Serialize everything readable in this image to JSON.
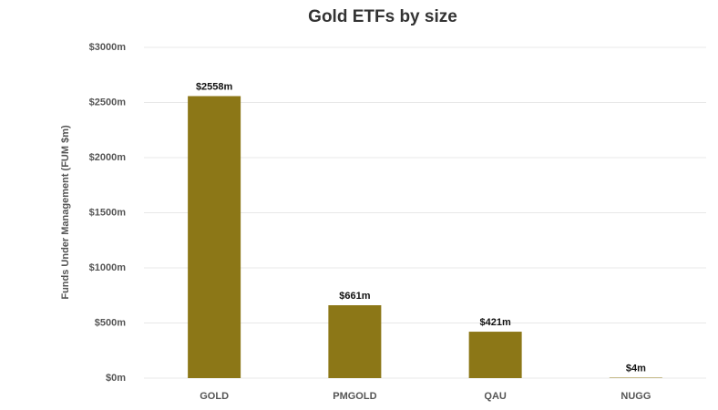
{
  "chart_data": {
    "type": "bar",
    "title": "Gold ETFs by size",
    "y_label": "Funds Under Management (FUM $m)",
    "categories": [
      "GOLD",
      "PMGOLD",
      "QAU",
      "NUGG"
    ],
    "values": [
      2558,
      661,
      421,
      4
    ],
    "value_labels": [
      "$2558m",
      "$661m",
      "$421m",
      "$4m"
    ],
    "color": "#8c7717",
    "ylim": [
      0,
      3000
    ],
    "yticks": [
      {
        "value": 0,
        "label": "$0m"
      },
      {
        "value": 500,
        "label": "$500m"
      },
      {
        "value": 1000,
        "label": "$1000m"
      },
      {
        "value": 1500,
        "label": "$1500m"
      },
      {
        "value": 2000,
        "label": "$2000m"
      },
      {
        "value": 2500,
        "label": "$2500m"
      },
      {
        "value": 3000,
        "label": "$3000m"
      }
    ],
    "grid": true
  }
}
